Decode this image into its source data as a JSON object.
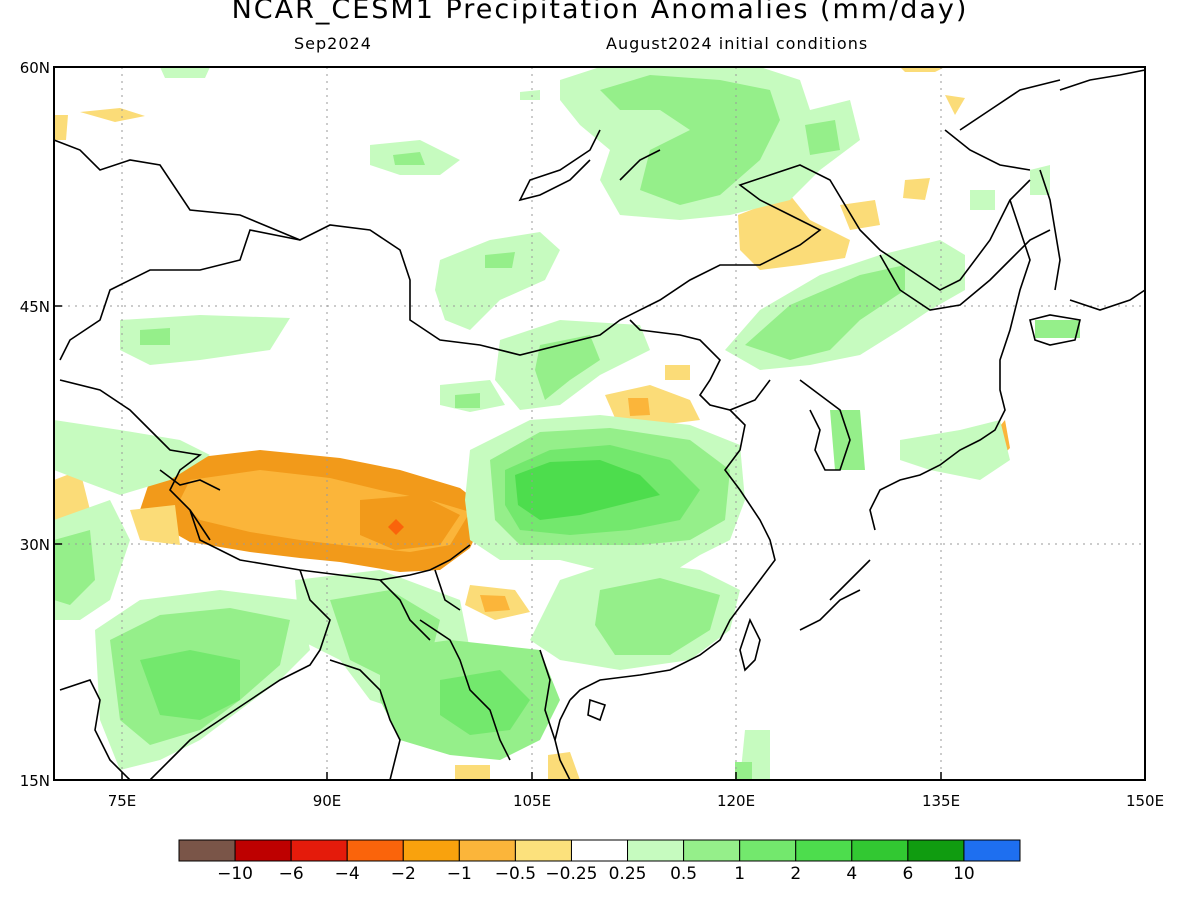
{
  "title": "NCAR_CESM1 Precipitation Anomalies (mm/day)",
  "subtitle_left": "Sep2024",
  "subtitle_right": "August2024 initial conditions",
  "map": {
    "lat_labels": [
      "60N",
      "45N",
      "30N",
      "15N"
    ],
    "lon_labels": [
      "75E",
      "90E",
      "105E",
      "120E",
      "135E",
      "150E"
    ],
    "lat_range": [
      15,
      60
    ],
    "lon_range": [
      70,
      150
    ]
  },
  "colors": {
    "dry_strong": "#f29a1a",
    "dry_mid": "#fbb53a",
    "dry_light": "#fbdc78",
    "dry_peak": "#fa640b",
    "wet_light": "#c6fbbf",
    "wet_mid": "#95ef8a",
    "wet_strong": "#5fe65b",
    "wet_peak": "#4ddd4d",
    "coast": "#000000"
  },
  "colorbar": {
    "swatches": [
      "#7a5548",
      "#be0000",
      "#e41b0b",
      "#fa640b",
      "#f9a20d",
      "#fbb53a",
      "#fce17c",
      "#ffffff",
      "#c6fbbf",
      "#95ef8a",
      "#73e86d",
      "#4ddd4d",
      "#32c832",
      "#109c10",
      "#1e6ff0"
    ],
    "labels": [
      "-10",
      "-6",
      "-4",
      "-2",
      "-1",
      "-0.5",
      "-0.25",
      "0.25",
      "0.5",
      "1",
      "2",
      "4",
      "6",
      "10"
    ]
  }
}
